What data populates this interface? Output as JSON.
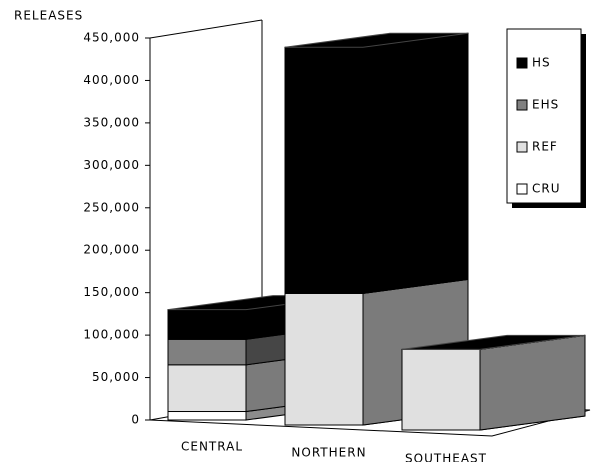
{
  "chart_data": {
    "type": "bar3d_stacked",
    "y_label": "RELEASES",
    "categories": [
      "CENTRAL",
      "NORTHERN",
      "SOUTHEAST"
    ],
    "series": [
      {
        "name": "CRU",
        "color": "#ffffff",
        "values": [
          10000,
          0,
          0
        ]
      },
      {
        "name": "REF",
        "color": "#e0e0e0",
        "values": [
          55000,
          155000,
          95000
        ]
      },
      {
        "name": "EHS",
        "color": "#808080",
        "values": [
          30000,
          0,
          0
        ]
      },
      {
        "name": "HS",
        "color": "#000000",
        "values": [
          35000,
          290000,
          0
        ]
      }
    ],
    "ylim": [
      0,
      450000
    ],
    "yticks": [
      0,
      {
        "value": 50000,
        "label": "50,000"
      },
      {
        "value": 100000,
        "label": "100,000"
      },
      {
        "value": 150000,
        "label": "150,000"
      },
      {
        "value": 200000,
        "label": "200,000"
      },
      {
        "value": 250000,
        "label": "250,000"
      },
      {
        "value": 300000,
        "label": "300,000"
      },
      {
        "value": 350000,
        "label": "350,000"
      },
      {
        "value": 400000,
        "label": "400,000"
      },
      {
        "value": 450000,
        "label": "450,000"
      }
    ],
    "legend": "top-right"
  }
}
